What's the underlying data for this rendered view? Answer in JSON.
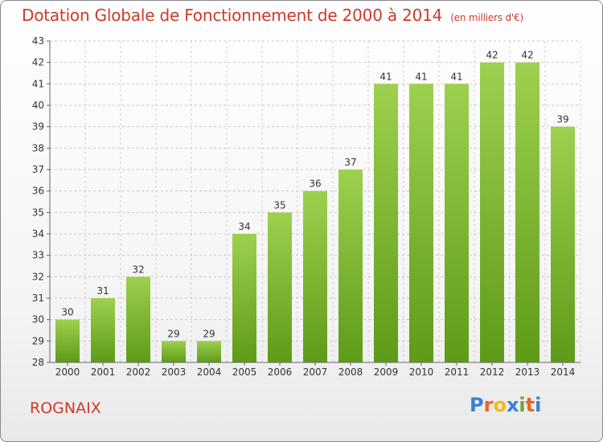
{
  "title": "Dotation Globale de Fonctionnement de 2000 à 2014",
  "unit": "(en milliers d'€)",
  "commune": "ROGNAIX",
  "logo": {
    "letters": [
      "P",
      "r",
      "o",
      "x",
      "i",
      "t",
      "i"
    ],
    "colors": [
      "#3a7fd5",
      "#e8641e",
      "#f2b91b",
      "#3a7fd5",
      "#6aaa2a",
      "#e8641e",
      "#3a7fd5"
    ]
  },
  "colors": {
    "accent": "#cc3a2a",
    "bar_top": "#9ed04f",
    "bar_bottom": "#5e9b18"
  },
  "chart_data": {
    "type": "bar",
    "categories": [
      "2000",
      "2001",
      "2002",
      "2003",
      "2004",
      "2005",
      "2006",
      "2007",
      "2008",
      "2009",
      "2010",
      "2011",
      "2012",
      "2013",
      "2014"
    ],
    "values": [
      30,
      31,
      32,
      29,
      29,
      34,
      35,
      36,
      37,
      41,
      41,
      41,
      42,
      42,
      39
    ],
    "ylim": [
      28,
      43
    ],
    "yticks": [
      28,
      29,
      30,
      31,
      32,
      33,
      34,
      35,
      36,
      37,
      38,
      39,
      40,
      41,
      42,
      43
    ],
    "grid": true,
    "xlabel": "",
    "ylabel": ""
  }
}
